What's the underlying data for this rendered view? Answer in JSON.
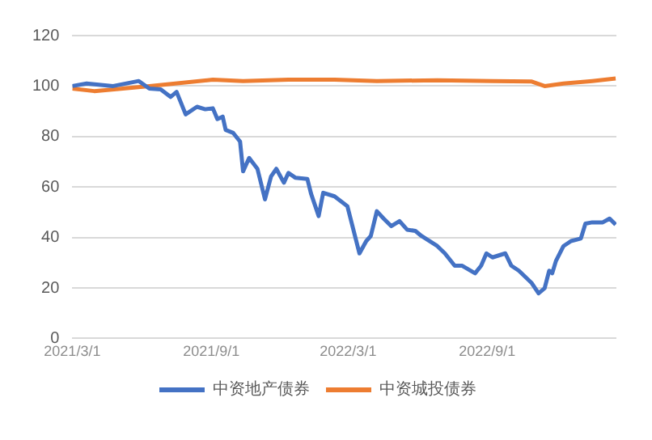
{
  "chart_data": {
    "type": "line",
    "legend": "bottom",
    "grid": "y",
    "marker": "none",
    "line_style": "solid",
    "xlim": [
      "2021-03-01",
      "2023-02-19"
    ],
    "xticks": [
      {
        "value": "2021-03-01",
        "label": "2021/3/1"
      },
      {
        "value": "2021-09-01",
        "label": "2021/9/1"
      },
      {
        "value": "2022-03-01",
        "label": "2022/3/1"
      },
      {
        "value": "2022-09-01",
        "label": "2022/9/1"
      }
    ],
    "ylim": [
      0,
      120
    ],
    "yticks": [
      0,
      20,
      40,
      60,
      80,
      100,
      120
    ],
    "series": [
      {
        "name": "中资地产债券",
        "color": "#4472c4",
        "x": [
          "2021-03-01",
          "2021-03-20",
          "2021-04-24",
          "2021-05-28",
          "2021-06-11",
          "2021-06-26",
          "2021-07-09",
          "2021-07-17",
          "2021-07-29",
          "2021-08-13",
          "2021-08-24",
          "2021-09-03",
          "2021-09-09",
          "2021-09-16",
          "2021-09-20",
          "2021-09-30",
          "2021-10-09",
          "2021-10-13",
          "2021-10-21",
          "2021-11-01",
          "2021-11-11",
          "2021-11-19",
          "2021-11-26",
          "2021-12-06",
          "2021-12-12",
          "2021-12-21",
          "2022-01-06",
          "2022-01-11",
          "2022-01-21",
          "2022-01-27",
          "2022-02-11",
          "2022-02-28",
          "2022-03-16",
          "2022-03-25",
          "2022-03-31",
          "2022-04-08",
          "2022-04-17",
          "2022-04-27",
          "2022-05-08",
          "2022-05-18",
          "2022-05-29",
          "2022-06-06",
          "2022-06-27",
          "2022-07-07",
          "2022-07-20",
          "2022-07-30",
          "2022-08-16",
          "2022-08-24",
          "2022-08-31",
          "2022-09-08",
          "2022-09-25",
          "2022-10-03",
          "2022-10-13",
          "2022-10-30",
          "2022-11-08",
          "2022-11-16",
          "2022-11-22",
          "2022-11-26",
          "2022-12-01",
          "2022-12-11",
          "2022-12-21",
          "2023-01-03",
          "2023-01-09",
          "2023-01-18",
          "2023-02-01",
          "2023-02-10",
          "2023-02-18"
        ],
        "values": [
          100,
          101,
          100,
          102,
          99,
          98.7,
          95.7,
          97.7,
          88.8,
          91.8,
          90.8,
          91.2,
          86.9,
          87.9,
          82.6,
          81.4,
          78,
          66.2,
          71.5,
          67.2,
          55.1,
          64.2,
          67.2,
          61.7,
          65.6,
          63.7,
          63.2,
          57.3,
          48.5,
          57.7,
          56.3,
          52.4,
          33.7,
          38.6,
          40.6,
          50.4,
          47.5,
          44.5,
          46.5,
          43.1,
          42.6,
          40.6,
          36.6,
          33.7,
          28.8,
          28.8,
          25.8,
          28.8,
          33.7,
          32.1,
          33.7,
          28.8,
          26.8,
          21.9,
          17.9,
          19.9,
          26.8,
          25.8,
          30.7,
          36.6,
          38.6,
          39.6,
          45.5,
          46,
          46,
          47.5,
          45.1
        ]
      },
      {
        "name": "中资城投债券",
        "color": "#ed7d31",
        "x": [
          "2021-03-01",
          "2021-03-30",
          "2021-06-11",
          "2021-09-03",
          "2021-10-13",
          "2021-12-12",
          "2022-02-11",
          "2022-04-08",
          "2022-06-27",
          "2022-09-08",
          "2022-10-30",
          "2022-11-16",
          "2022-12-11",
          "2023-01-18",
          "2023-02-18"
        ],
        "values": [
          99,
          98,
          100,
          102.5,
          102,
          102.5,
          102.5,
          102,
          102.3,
          102,
          101.8,
          100,
          101,
          102,
          103
        ]
      }
    ]
  }
}
